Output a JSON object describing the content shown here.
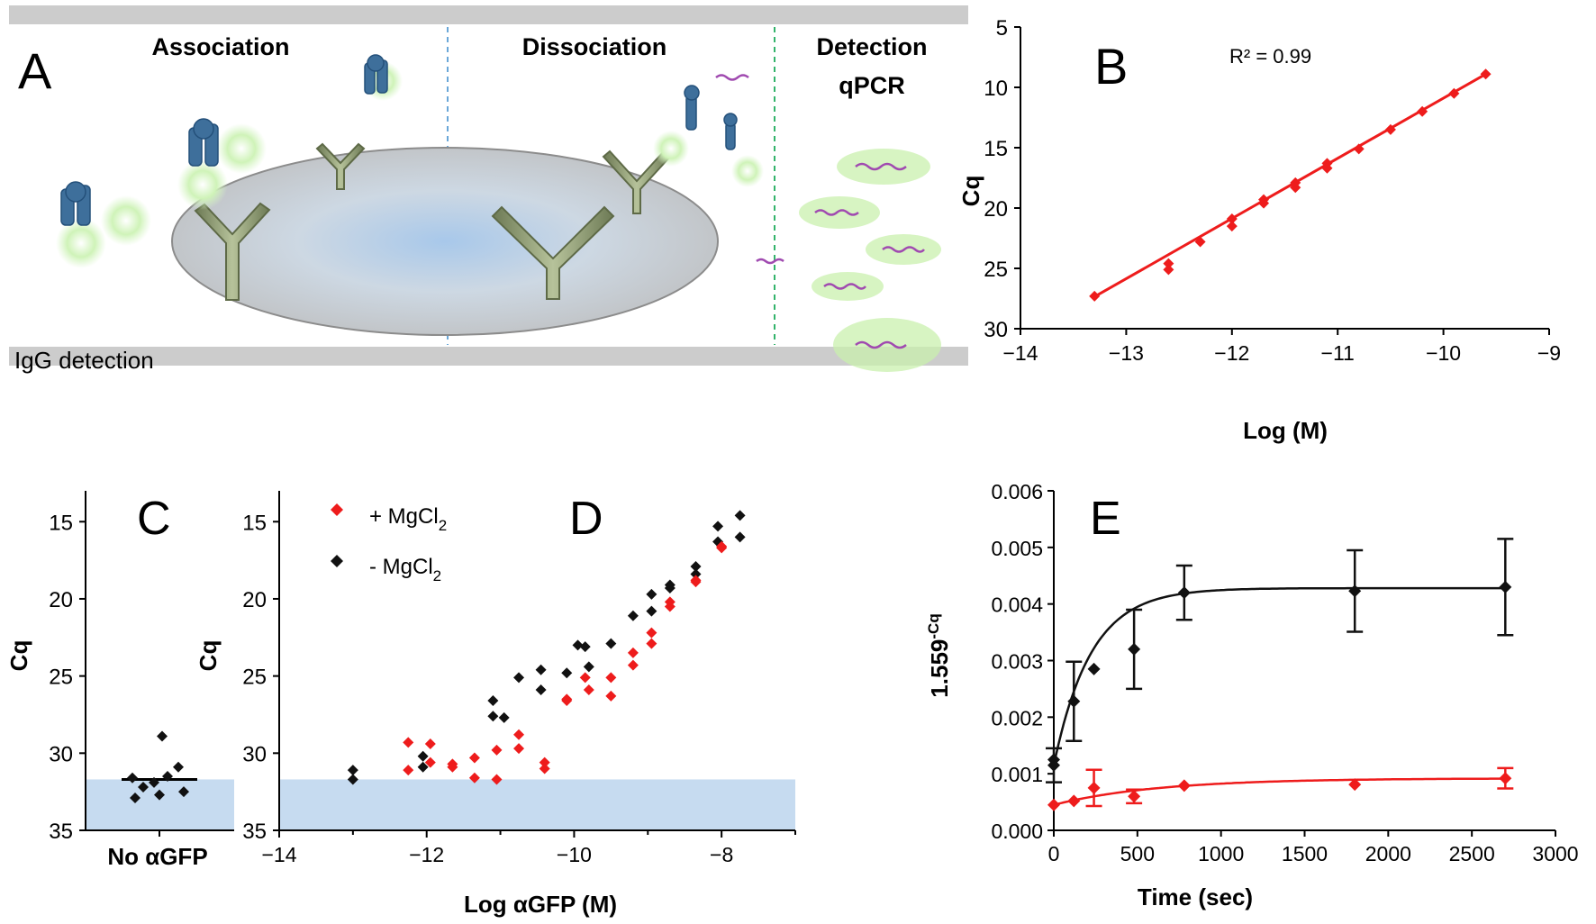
{
  "panel_a": {
    "letter": "A",
    "association": "Association",
    "dissociation": "Dissociation",
    "detection": "Detection",
    "qpcr": "qPCR",
    "igg": "IgG detection"
  },
  "panel_letters": {
    "b": "B",
    "c": "C",
    "d": "D",
    "e": "E"
  },
  "colors": {
    "red": "#ee1c1c",
    "black": "#111111",
    "band": "#c6dbf0",
    "bar": "#cccccc"
  },
  "chart_data": [
    {
      "id": "B",
      "type": "scatter",
      "xlabel": "Log (M)",
      "ylabel": "Cq",
      "annotation": "R² = 0.99",
      "xlim": [
        -14,
        -9
      ],
      "ylim": [
        30,
        5
      ],
      "xticks": [
        -14,
        -13,
        -12,
        -11,
        -10,
        -9
      ],
      "yticks": [
        5,
        10,
        15,
        20,
        25,
        30
      ],
      "points": [
        [
          -13.3,
          27.3
        ],
        [
          -12.6,
          24.6
        ],
        [
          -12.6,
          25.1
        ],
        [
          -12.3,
          22.8
        ],
        [
          -12.0,
          20.9
        ],
        [
          -12.0,
          21.5
        ],
        [
          -11.7,
          19.3
        ],
        [
          -11.7,
          19.6
        ],
        [
          -11.4,
          17.9
        ],
        [
          -11.4,
          18.3
        ],
        [
          -11.1,
          16.3
        ],
        [
          -11.1,
          16.7
        ],
        [
          -10.8,
          15.1
        ],
        [
          -10.5,
          13.5
        ],
        [
          -10.2,
          12.0
        ],
        [
          -9.9,
          10.5
        ],
        [
          -9.6,
          8.9
        ]
      ],
      "fit": [
        [
          -13.3,
          27.35
        ],
        [
          -9.6,
          8.9
        ]
      ]
    },
    {
      "id": "C",
      "type": "scatter",
      "xlabel": "No αGFP",
      "ylabel": "Cq",
      "ylim": [
        35,
        13
      ],
      "yticks": [
        15,
        20,
        25,
        30,
        35
      ],
      "points": [
        [
          -0.5,
          31.6
        ],
        [
          -0.3,
          32.2
        ],
        [
          -0.1,
          31.9
        ],
        [
          0.05,
          28.9
        ],
        [
          0.15,
          31.5
        ],
        [
          0.35,
          30.9
        ],
        [
          0.45,
          32.5
        ],
        [
          -0.45,
          32.9
        ],
        [
          0.0,
          32.7
        ]
      ],
      "median": 31.7,
      "band_top": 31.7
    },
    {
      "id": "D",
      "type": "scatter",
      "xlabel": "Log αGFP (M)",
      "ylabel": "Cq",
      "xlim": [
        -14,
        -7
      ],
      "ylim": [
        35,
        13
      ],
      "xticks": [
        -14,
        -12,
        -10,
        -8
      ],
      "yticks": [
        15,
        20,
        25,
        30,
        35
      ],
      "band_top": 31.7,
      "legend": [
        {
          "prefix": "+ MgCl",
          "sub": "2"
        },
        {
          "prefix": "- MgCl",
          "sub": "2"
        }
      ],
      "series": [
        {
          "name": "+ MgCl2",
          "points": [
            [
              -12.25,
              29.3
            ],
            [
              -12.25,
              31.1
            ],
            [
              -11.95,
              29.4
            ],
            [
              -11.95,
              30.6
            ],
            [
              -11.65,
              30.7
            ],
            [
              -11.65,
              30.9
            ],
            [
              -11.35,
              30.3
            ],
            [
              -11.35,
              31.6
            ],
            [
              -11.05,
              29.8
            ],
            [
              -11.05,
              31.7
            ],
            [
              -10.75,
              28.8
            ],
            [
              -10.75,
              29.7
            ],
            [
              -10.4,
              30.6
            ],
            [
              -10.4,
              31.0
            ],
            [
              -10.1,
              26.5
            ],
            [
              -10.1,
              26.6
            ],
            [
              -9.85,
              25.1
            ],
            [
              -9.8,
              25.9
            ],
            [
              -9.5,
              25.1
            ],
            [
              -9.5,
              26.3
            ],
            [
              -9.2,
              23.5
            ],
            [
              -9.2,
              24.3
            ],
            [
              -8.95,
              22.2
            ],
            [
              -8.95,
              22.9
            ],
            [
              -8.7,
              20.2
            ],
            [
              -8.7,
              20.5
            ],
            [
              -8.35,
              18.8
            ],
            [
              -8.35,
              18.9
            ],
            [
              -8.0,
              16.6
            ],
            [
              -8.0,
              16.7
            ]
          ]
        },
        {
          "name": "- MgCl2",
          "points": [
            [
              -13.0,
              31.1
            ],
            [
              -13.0,
              31.7
            ],
            [
              -12.05,
              30.2
            ],
            [
              -12.05,
              30.9
            ],
            [
              -11.1,
              26.6
            ],
            [
              -11.1,
              27.6
            ],
            [
              -10.95,
              27.7
            ],
            [
              -10.75,
              25.1
            ],
            [
              -10.45,
              24.6
            ],
            [
              -10.45,
              25.9
            ],
            [
              -10.1,
              24.8
            ],
            [
              -9.95,
              23.0
            ],
            [
              -9.85,
              23.1
            ],
            [
              -9.8,
              24.4
            ],
            [
              -9.5,
              22.9
            ],
            [
              -9.2,
              21.1
            ],
            [
              -8.95,
              19.7
            ],
            [
              -8.95,
              20.8
            ],
            [
              -8.7,
              19.1
            ],
            [
              -8.7,
              19.3
            ],
            [
              -8.35,
              17.9
            ],
            [
              -8.35,
              18.4
            ],
            [
              -8.05,
              15.3
            ],
            [
              -8.05,
              16.3
            ],
            [
              -7.75,
              14.6
            ],
            [
              -7.75,
              16.0
            ]
          ]
        }
      ]
    },
    {
      "id": "E",
      "type": "line",
      "xlabel": "Time (sec)",
      "ylabel_base": "1.559",
      "ylabel_sup": "-Cq",
      "xlim": [
        0,
        3000
      ],
      "ylim": [
        0,
        0.006
      ],
      "xticks": [
        0,
        500,
        1000,
        1500,
        2000,
        2500,
        3000
      ],
      "yticks": [
        "0.000",
        "0.001",
        "0.002",
        "0.003",
        "0.004",
        "0.005",
        "0.006"
      ],
      "series": [
        {
          "name": "black",
          "points": [
            [
              0,
              0.00115
            ],
            [
              0,
              0.00125
            ],
            [
              120,
              0.00228
            ],
            [
              240,
              0.00285
            ],
            [
              480,
              0.0032
            ],
            [
              780,
              0.0042
            ],
            [
              1800,
              0.00423
            ],
            [
              2700,
              0.0043
            ]
          ],
          "errors": [
            [
              0,
              0.0003
            ],
            [
              0,
              0
            ],
            [
              120,
              0.0007
            ],
            [
              240,
              0
            ],
            [
              480,
              0.0007
            ],
            [
              780,
              0.00048
            ],
            [
              1800,
              0.00072
            ],
            [
              2700,
              0.00085
            ]
          ],
          "fit": {
            "y0": 0.00115,
            "plateau": 0.00428,
            "k": 0.0045
          }
        },
        {
          "name": "red",
          "points": [
            [
              0,
              0.00045
            ],
            [
              120,
              0.00052
            ],
            [
              240,
              0.00075
            ],
            [
              480,
              0.0006
            ],
            [
              780,
              0.00079
            ],
            [
              1800,
              0.00081
            ],
            [
              2700,
              0.00092
            ]
          ],
          "errors": [
            [
              0,
              0
            ],
            [
              120,
              0
            ],
            [
              240,
              0.00032
            ],
            [
              480,
              0.00012
            ],
            [
              780,
              0
            ],
            [
              1800,
              0
            ],
            [
              2700,
              0.00018
            ]
          ],
          "fit": {
            "y0": 0.00045,
            "plateau": 0.00092,
            "k": 0.0016
          }
        }
      ]
    }
  ]
}
